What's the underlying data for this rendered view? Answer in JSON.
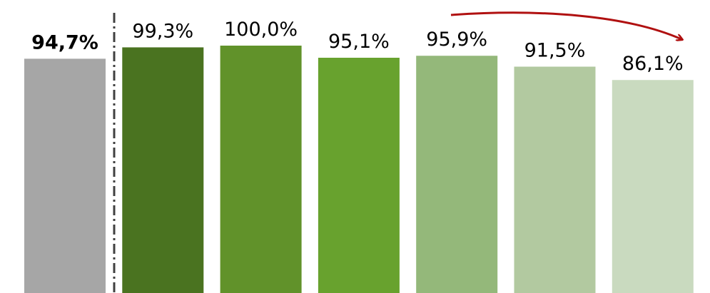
{
  "chart_data": {
    "type": "bar",
    "categories": [
      null,
      null,
      null,
      null,
      null,
      null,
      null
    ],
    "values": [
      94.7,
      99.3,
      100.0,
      95.1,
      95.9,
      91.5,
      86.1
    ],
    "value_labels": [
      "94,7%",
      "99,3%",
      "100,0%",
      "95,1%",
      "95,9%",
      "91,5%",
      "86,1%"
    ],
    "colors": [
      "#a6a6a6",
      "#4a7320",
      "#61922a",
      "#68a22e",
      "#94b87a",
      "#b2c9a0",
      "#c9dabf"
    ],
    "ylim": [
      0,
      100
    ]
  }
}
